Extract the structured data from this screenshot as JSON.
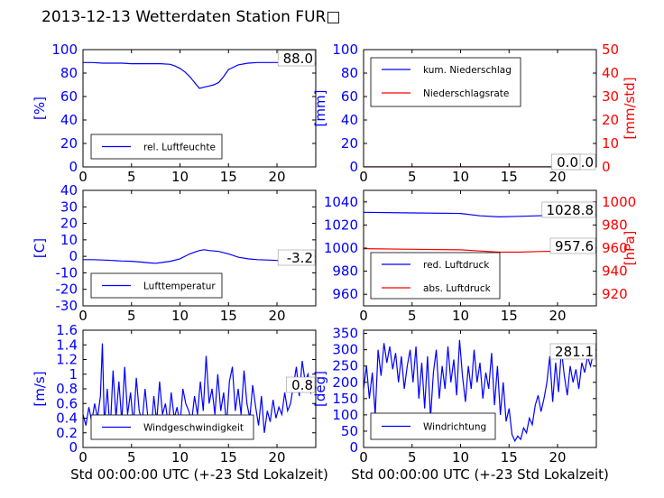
{
  "title": "2013-12-13 Wetterdaten Station FUR□",
  "xlabel": "Std 00:00:00 UTC (+-23 Std Lokalzeit)",
  "colors": {
    "blue": "#0000ff",
    "red": "#ff0000",
    "axis": "#000000"
  },
  "chart_data": [
    {
      "id": "humidity",
      "type": "line",
      "ylabel": "[%]",
      "xlim": [
        0,
        24
      ],
      "ylim": [
        0,
        100
      ],
      "xticks": [
        0,
        5,
        10,
        15,
        20
      ],
      "yticks": [
        0,
        20,
        40,
        60,
        80,
        100
      ],
      "current_value": "88.0",
      "legend_loc": "lower-left",
      "series": [
        {
          "name": "rel. Luftfeuchte",
          "color": "#0000ff",
          "x": [
            0,
            1,
            2,
            3,
            4,
            5,
            6,
            7,
            8,
            9,
            9.5,
            10,
            10.5,
            11,
            11.5,
            12,
            12.5,
            13,
            13.5,
            14,
            14.5,
            15,
            16,
            17,
            18,
            19,
            20,
            21,
            22,
            23,
            24
          ],
          "y": [
            89,
            89,
            88.5,
            88.5,
            88.5,
            88,
            88,
            88,
            88,
            87.5,
            86,
            84,
            81,
            77,
            72,
            67,
            68,
            69,
            70,
            72,
            77,
            83,
            87,
            88.5,
            89,
            89,
            89,
            88.5,
            88,
            88,
            88
          ]
        }
      ]
    },
    {
      "id": "precip",
      "type": "line",
      "ylabel": "[mm]",
      "y2label": "[mm/std]",
      "xlim": [
        0,
        24
      ],
      "ylim": [
        0,
        100
      ],
      "y2lim": [
        0,
        50
      ],
      "xticks": [
        0,
        5,
        10,
        15,
        20
      ],
      "yticks": [
        0,
        20,
        40,
        60,
        80,
        100
      ],
      "y2ticks": [
        0,
        10,
        20,
        30,
        40,
        50
      ],
      "current_value": "0.0",
      "current_value2": "0.0",
      "legend_loc": "upper-left",
      "series": [
        {
          "name": "kum. Niederschlag",
          "color": "#0000ff",
          "axis": "left",
          "x": [
            0,
            24
          ],
          "y": [
            0,
            0
          ]
        },
        {
          "name": "Niederschlagsrate",
          "color": "#ff0000",
          "axis": "right",
          "x": [
            0,
            24
          ],
          "y": [
            0,
            0
          ]
        }
      ]
    },
    {
      "id": "temperature",
      "type": "line",
      "ylabel": "[C]",
      "xlim": [
        0,
        24
      ],
      "ylim": [
        -30,
        40
      ],
      "xticks": [
        0,
        5,
        10,
        15,
        20
      ],
      "yticks": [
        -30,
        -20,
        -10,
        0,
        10,
        20,
        30,
        40
      ],
      "current_value": "-3.2",
      "legend_loc": "lower-left",
      "series": [
        {
          "name": "Lufttemperatur",
          "color": "#0000ff",
          "x": [
            0,
            1,
            2,
            3,
            4,
            5,
            6,
            7,
            7.5,
            8,
            9,
            10,
            11,
            12,
            12.5,
            13,
            14,
            15,
            16,
            17,
            18,
            19,
            20,
            21,
            22,
            23,
            24
          ],
          "y": [
            -2,
            -2,
            -2.2,
            -2.5,
            -2.8,
            -3,
            -3.5,
            -4,
            -4.2,
            -3.8,
            -3,
            -1.5,
            1.5,
            3.5,
            4,
            3.5,
            3,
            1.5,
            -0.5,
            -1.5,
            -2,
            -2.2,
            -2.5,
            -2.7,
            -2.8,
            -3,
            -3.2
          ]
        }
      ]
    },
    {
      "id": "pressure",
      "type": "line",
      "ylabel": "",
      "y2label": "[hPa]",
      "xlim": [
        0,
        24
      ],
      "ylim": [
        950,
        1050
      ],
      "y2lim": [
        910,
        1010
      ],
      "xticks": [
        0,
        5,
        10,
        15,
        20
      ],
      "yticks": [
        960,
        980,
        1000,
        1020,
        1040
      ],
      "y2ticks": [
        920,
        940,
        960,
        980,
        1000
      ],
      "current_value": "1028.8",
      "current_value2": "957.6",
      "legend_loc": "lower-left",
      "series": [
        {
          "name": "red. Luftdruck",
          "color": "#0000ff",
          "axis": "left",
          "x": [
            0,
            5,
            10,
            12,
            14,
            16,
            18,
            20,
            22,
            24
          ],
          "y": [
            1031,
            1030.5,
            1030,
            1028,
            1027,
            1027.5,
            1028,
            1028.5,
            1028.8,
            1028.8
          ]
        },
        {
          "name": "abs. Luftdruck",
          "color": "#ff0000",
          "axis": "right",
          "x": [
            0,
            5,
            10,
            12,
            14,
            16,
            18,
            20,
            22,
            24
          ],
          "y": [
            959.5,
            959,
            958.5,
            957.5,
            956.5,
            956.5,
            957,
            957.3,
            957.6,
            957.6
          ]
        }
      ]
    },
    {
      "id": "windspeed",
      "type": "line",
      "ylabel": "[m/s]",
      "xlim": [
        0,
        24
      ],
      "ylim": [
        0,
        1.6
      ],
      "xticks": [
        0,
        5,
        10,
        15,
        20
      ],
      "yticks": [
        0,
        0.2,
        0.4,
        0.6,
        0.8,
        1.0,
        1.2,
        1.4,
        1.6
      ],
      "current_value": "0.8",
      "legend_loc": "lower-left",
      "series": [
        {
          "name": "Windgeschwindigkeit",
          "color": "#0000ff",
          "x": [
            0,
            0.3,
            0.6,
            0.9,
            1.2,
            1.5,
            1.8,
            2.0,
            2.2,
            2.5,
            2.8,
            3.1,
            3.4,
            3.7,
            4.0,
            4.3,
            4.6,
            4.9,
            5.2,
            5.5,
            5.8,
            6.1,
            6.4,
            6.7,
            7.0,
            7.3,
            7.6,
            7.9,
            8.2,
            8.5,
            8.8,
            9.1,
            9.4,
            9.7,
            10.0,
            10.3,
            10.6,
            10.9,
            11.2,
            11.5,
            11.8,
            12.1,
            12.4,
            12.7,
            13.0,
            13.3,
            13.6,
            13.9,
            14.2,
            14.5,
            14.8,
            15.1,
            15.4,
            15.7,
            16.0,
            16.3,
            16.6,
            16.9,
            17.2,
            17.5,
            17.8,
            18.1,
            18.4,
            18.7,
            19.0,
            19.3,
            19.6,
            19.9,
            20.2,
            20.5,
            20.8,
            21.1,
            21.4,
            21.7,
            22.0,
            22.3,
            22.6,
            22.9,
            23.2,
            23.5,
            23.8,
            24.0
          ],
          "y": [
            0.45,
            0.3,
            0.55,
            0.35,
            0.6,
            0.4,
            0.7,
            1.42,
            0.3,
            0.8,
            0.2,
            1.05,
            0.4,
            0.9,
            0.35,
            1.1,
            0.45,
            0.75,
            0.3,
            0.95,
            0.5,
            0.35,
            0.8,
            0.4,
            0.15,
            0.7,
            0.35,
            0.9,
            0.45,
            0.6,
            0.3,
            0.75,
            0.4,
            0.55,
            0.3,
            0.8,
            0.6,
            0.5,
            0.35,
            0.7,
            0.45,
            0.9,
            0.5,
            1.25,
            0.6,
            0.8,
            0.45,
            1.0,
            0.5,
            0.75,
            0.3,
            0.9,
            1.1,
            0.5,
            0.8,
            0.45,
            1.05,
            0.6,
            0.4,
            0.85,
            0.55,
            0.3,
            0.7,
            0.2,
            0.5,
            0.35,
            0.65,
            0.4,
            0.55,
            0.45,
            0.75,
            0.5,
            0.6,
            0.85,
            1.1,
            0.7,
            1.18,
            0.9,
            1.0,
            0.75,
            0.85,
            0.8
          ]
        }
      ]
    },
    {
      "id": "winddir",
      "type": "line",
      "ylabel": "[deg]",
      "xlim": [
        0,
        24
      ],
      "ylim": [
        0,
        360
      ],
      "xticks": [
        0,
        5,
        10,
        15,
        20
      ],
      "yticks": [
        0,
        50,
        100,
        150,
        200,
        250,
        300,
        350
      ],
      "current_value": "281.1",
      "legend_loc": "lower-left",
      "series": [
        {
          "name": "Windrichtung",
          "color": "#0000ff",
          "x": [
            0,
            0.3,
            0.6,
            0.9,
            1.2,
            1.5,
            1.8,
            2.1,
            2.4,
            2.7,
            3.0,
            3.3,
            3.6,
            3.9,
            4.2,
            4.5,
            4.8,
            5.1,
            5.4,
            5.7,
            6.0,
            6.3,
            6.6,
            6.9,
            7.2,
            7.5,
            7.8,
            8.1,
            8.4,
            8.7,
            9.0,
            9.3,
            9.6,
            9.9,
            10.2,
            10.5,
            10.8,
            11.1,
            11.4,
            11.7,
            12.0,
            12.3,
            12.6,
            12.9,
            13.2,
            13.5,
            13.8,
            14.1,
            14.4,
            14.7,
            15.0,
            15.3,
            15.6,
            15.9,
            16.2,
            16.5,
            16.8,
            17.1,
            17.4,
            17.7,
            18.0,
            18.3,
            18.6,
            18.9,
            19.2,
            19.5,
            19.8,
            20.1,
            20.4,
            20.7,
            21.0,
            21.3,
            21.6,
            21.9,
            22.2,
            22.5,
            22.8,
            23.1,
            23.4,
            23.7,
            24.0
          ],
          "y": [
            180,
            250,
            150,
            230,
            100,
            300,
            220,
            320,
            260,
            310,
            240,
            290,
            200,
            280,
            180,
            250,
            300,
            200,
            310,
            150,
            260,
            120,
            280,
            90,
            230,
            300,
            150,
            250,
            180,
            310,
            200,
            270,
            160,
            330,
            220,
            140,
            250,
            180,
            300,
            200,
            260,
            150,
            230,
            180,
            290,
            130,
            250,
            100,
            200,
            80,
            120,
            40,
            20,
            35,
            25,
            60,
            45,
            90,
            70,
            130,
            160,
            110,
            150,
            200,
            280,
            140,
            260,
            170,
            300,
            220,
            160,
            250,
            200,
            240,
            180,
            260,
            230,
            280,
            250,
            290,
            280
          ]
        }
      ]
    }
  ]
}
